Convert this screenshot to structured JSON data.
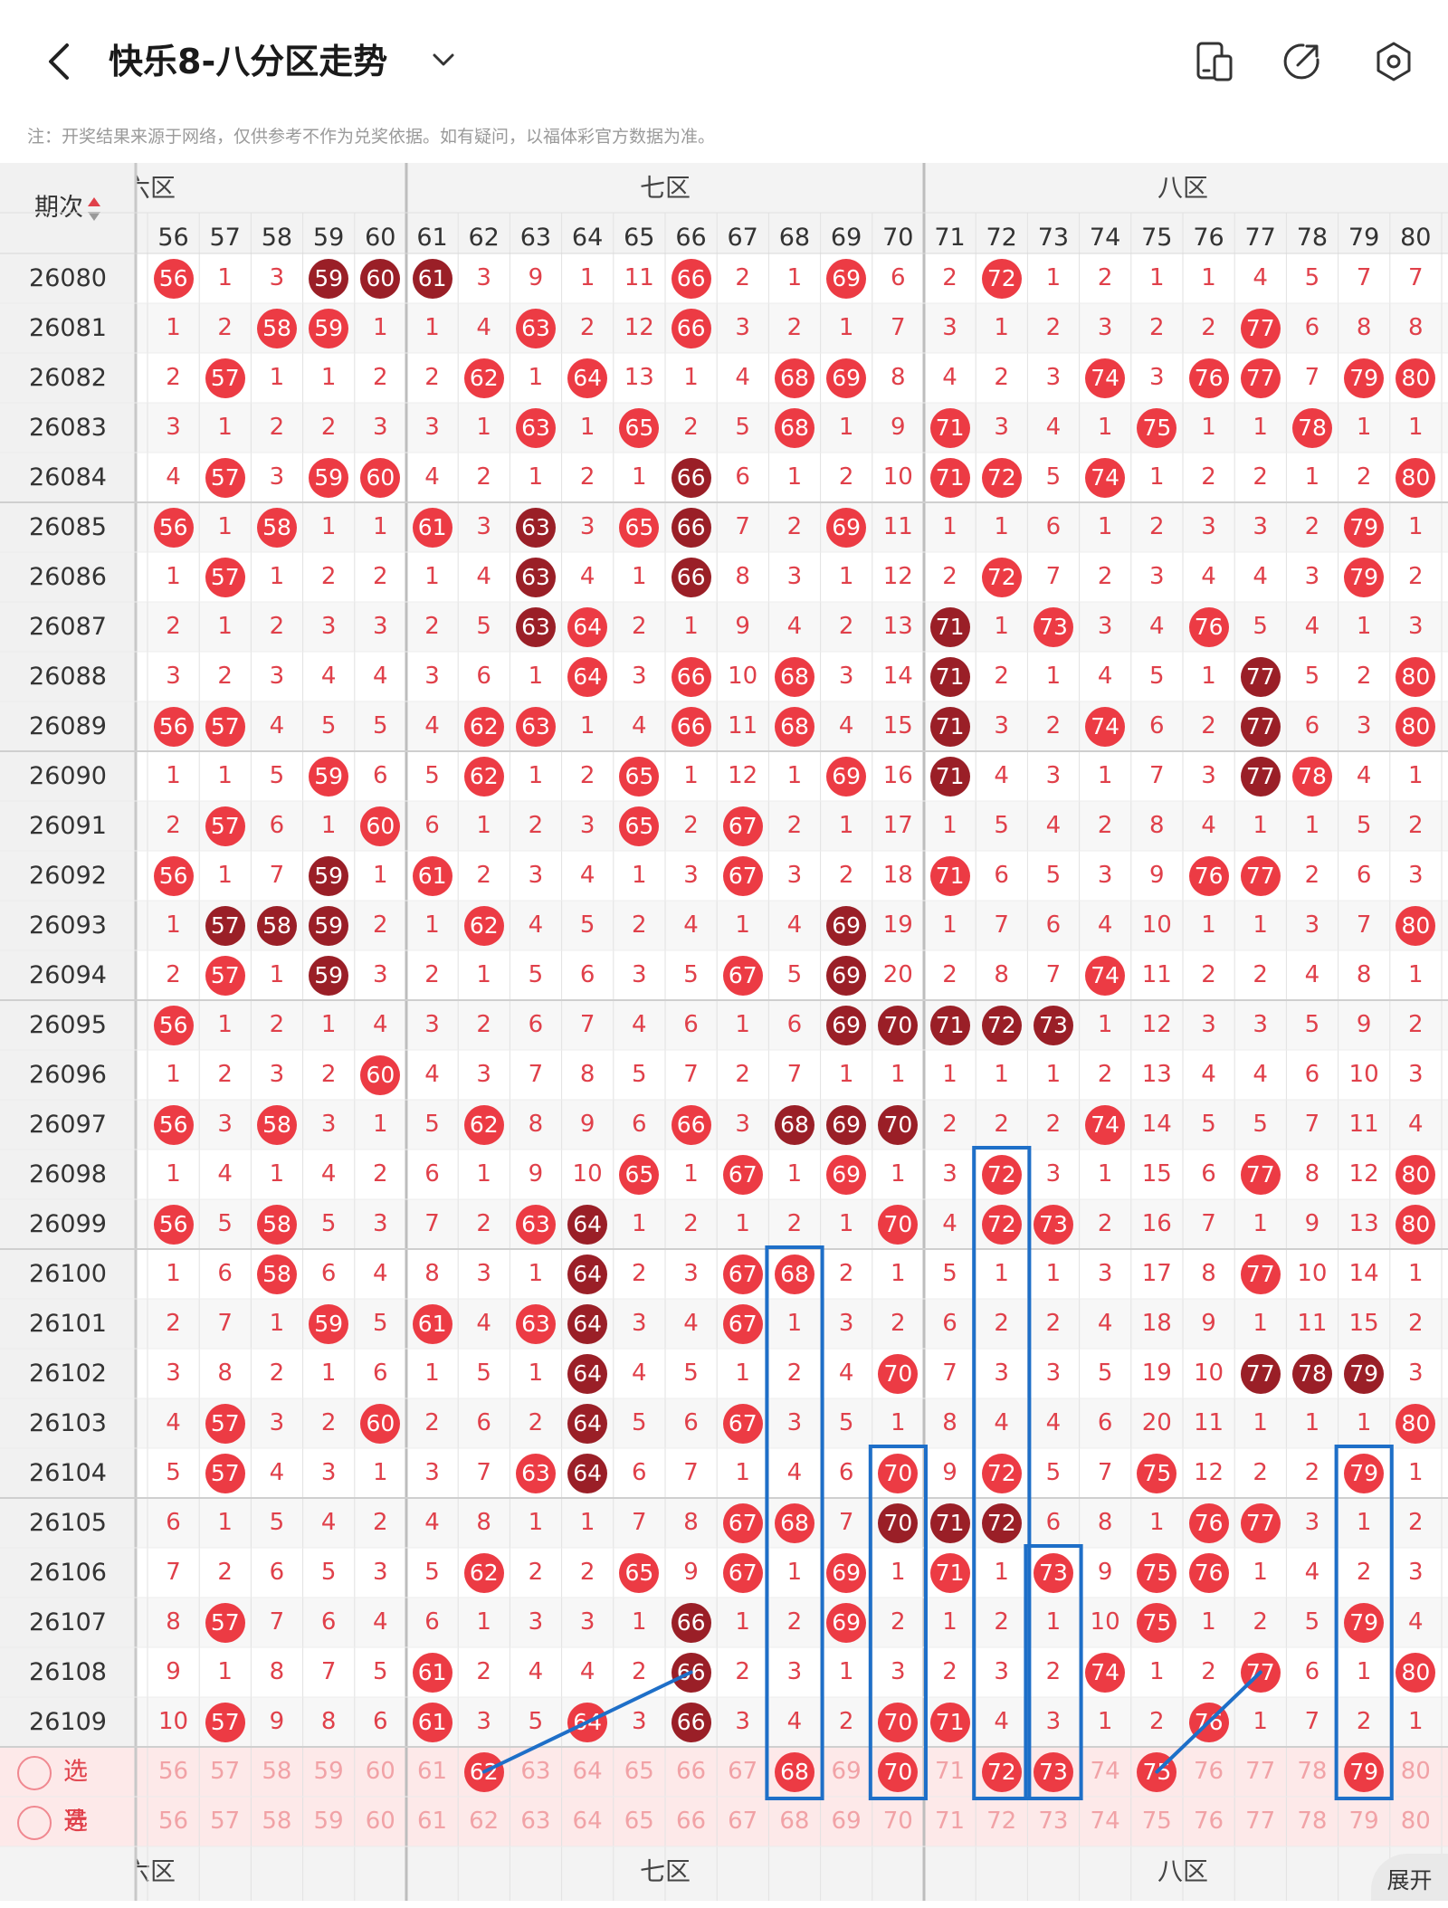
{
  "header": {
    "title": "快乐8-八分区走势",
    "icons": [
      "back-icon",
      "chevron-down-icon",
      "device-icon",
      "share-icon",
      "settings-icon"
    ]
  },
  "notice": "注：开奖结果来源于网络，仅供参考不作为兑奖依据。如有疑问，以福体彩官方数据为准。",
  "table": {
    "period_header": "期次",
    "zones": [
      {
        "label": "六区",
        "visible": "六区"
      },
      {
        "label": "七区",
        "visible": "七区"
      },
      {
        "label": "八区",
        "visible": "八区"
      }
    ],
    "zone_labels": [
      "六区",
      "七区",
      "八区"
    ],
    "numbers": [
      56,
      57,
      58,
      59,
      60,
      61,
      62,
      63,
      64,
      65,
      66,
      67,
      68,
      69,
      70,
      71,
      72,
      73,
      74,
      75,
      76,
      77,
      78,
      79,
      80
    ],
    "rows": [
      {
        "period": "26080",
        "cells": [
          "56",
          "1",
          "3",
          "59",
          "60",
          "61",
          "3",
          "9",
          "1",
          "11",
          "66",
          "2",
          "1",
          "69",
          "6",
          "2",
          "72",
          "1",
          "2",
          "1",
          "1",
          "4",
          "5",
          "7",
          "7"
        ],
        "dark": [
          59,
          60,
          61
        ]
      },
      {
        "period": "26081",
        "cells": [
          "1",
          "2",
          "58",
          "59",
          "1",
          "1",
          "4",
          "63",
          "2",
          "12",
          "66",
          "3",
          "2",
          "1",
          "7",
          "3",
          "1",
          "2",
          "3",
          "2",
          "2",
          "77",
          "6",
          "8",
          "8"
        ],
        "dark": []
      },
      {
        "period": "26082",
        "cells": [
          "2",
          "57",
          "1",
          "1",
          "2",
          "2",
          "62",
          "1",
          "64",
          "13",
          "1",
          "4",
          "68",
          "69",
          "8",
          "4",
          "2",
          "3",
          "74",
          "3",
          "76",
          "77",
          "7",
          "79",
          "80"
        ],
        "dark": []
      },
      {
        "period": "26083",
        "cells": [
          "3",
          "1",
          "2",
          "2",
          "3",
          "3",
          "1",
          "63",
          "1",
          "65",
          "2",
          "5",
          "68",
          "1",
          "9",
          "71",
          "3",
          "4",
          "1",
          "75",
          "1",
          "1",
          "78",
          "1",
          "1"
        ],
        "dark": []
      },
      {
        "period": "26084",
        "cells": [
          "4",
          "57",
          "3",
          "59",
          "60",
          "4",
          "2",
          "1",
          "2",
          "1",
          "66",
          "6",
          "1",
          "2",
          "10",
          "71",
          "72",
          "5",
          "74",
          "1",
          "2",
          "2",
          "1",
          "2",
          "80"
        ],
        "dark": [
          66
        ]
      },
      {
        "period": "26085",
        "cells": [
          "56",
          "1",
          "58",
          "1",
          "1",
          "61",
          "3",
          "63",
          "3",
          "65",
          "66",
          "7",
          "2",
          "69",
          "11",
          "1",
          "1",
          "6",
          "1",
          "2",
          "3",
          "3",
          "2",
          "79",
          "1"
        ],
        "dark": [
          63,
          66
        ]
      },
      {
        "period": "26086",
        "cells": [
          "1",
          "57",
          "1",
          "2",
          "2",
          "1",
          "4",
          "63",
          "4",
          "1",
          "66",
          "8",
          "3",
          "1",
          "12",
          "2",
          "72",
          "7",
          "2",
          "3",
          "4",
          "4",
          "3",
          "79",
          "2"
        ],
        "dark": [
          63,
          66
        ]
      },
      {
        "period": "26087",
        "cells": [
          "2",
          "1",
          "2",
          "3",
          "3",
          "2",
          "5",
          "63",
          "64",
          "2",
          "1",
          "9",
          "4",
          "2",
          "13",
          "71",
          "1",
          "73",
          "3",
          "4",
          "76",
          "5",
          "4",
          "1",
          "3"
        ],
        "dark": [
          63,
          71
        ]
      },
      {
        "period": "26088",
        "cells": [
          "3",
          "2",
          "3",
          "4",
          "4",
          "3",
          "6",
          "1",
          "64",
          "3",
          "66",
          "10",
          "68",
          "3",
          "14",
          "71",
          "2",
          "1",
          "4",
          "5",
          "1",
          "77",
          "5",
          "2",
          "80"
        ],
        "dark": [
          71,
          77
        ]
      },
      {
        "period": "26089",
        "cells": [
          "56",
          "57",
          "4",
          "5",
          "5",
          "4",
          "62",
          "63",
          "1",
          "4",
          "66",
          "11",
          "68",
          "4",
          "15",
          "71",
          "3",
          "2",
          "74",
          "6",
          "2",
          "77",
          "6",
          "3",
          "80"
        ],
        "dark": [
          71,
          77
        ]
      },
      {
        "period": "26090",
        "cells": [
          "1",
          "1",
          "5",
          "59",
          "6",
          "5",
          "62",
          "1",
          "2",
          "65",
          "1",
          "12",
          "1",
          "69",
          "16",
          "71",
          "4",
          "3",
          "1",
          "7",
          "3",
          "77",
          "78",
          "4",
          "1"
        ],
        "dark": [
          71,
          77
        ]
      },
      {
        "period": "26091",
        "cells": [
          "2",
          "57",
          "6",
          "1",
          "60",
          "6",
          "1",
          "2",
          "3",
          "65",
          "2",
          "67",
          "2",
          "1",
          "17",
          "1",
          "5",
          "4",
          "2",
          "8",
          "4",
          "1",
          "1",
          "5",
          "2"
        ],
        "dark": []
      },
      {
        "period": "26092",
        "cells": [
          "56",
          "1",
          "7",
          "59",
          "1",
          "61",
          "2",
          "3",
          "4",
          "1",
          "3",
          "67",
          "3",
          "2",
          "18",
          "71",
          "6",
          "5",
          "3",
          "9",
          "76",
          "77",
          "2",
          "6",
          "3"
        ],
        "dark": [
          59
        ]
      },
      {
        "period": "26093",
        "cells": [
          "1",
          "57",
          "58",
          "59",
          "2",
          "1",
          "62",
          "4",
          "5",
          "2",
          "4",
          "1",
          "4",
          "69",
          "19",
          "1",
          "7",
          "6",
          "4",
          "10",
          "1",
          "1",
          "3",
          "7",
          "80"
        ],
        "dark": [
          57,
          58,
          59,
          69
        ]
      },
      {
        "period": "26094",
        "cells": [
          "2",
          "57",
          "1",
          "59",
          "3",
          "2",
          "1",
          "5",
          "6",
          "3",
          "5",
          "67",
          "5",
          "69",
          "20",
          "2",
          "8",
          "7",
          "74",
          "11",
          "2",
          "2",
          "4",
          "8",
          "1"
        ],
        "dark": [
          59,
          69
        ]
      },
      {
        "period": "26095",
        "cells": [
          "56",
          "1",
          "2",
          "1",
          "4",
          "3",
          "2",
          "6",
          "7",
          "4",
          "6",
          "1",
          "6",
          "69",
          "70",
          "71",
          "72",
          "73",
          "1",
          "12",
          "3",
          "3",
          "5",
          "9",
          "2"
        ],
        "dark": [
          69,
          70,
          71,
          72,
          73
        ]
      },
      {
        "period": "26096",
        "cells": [
          "1",
          "2",
          "3",
          "2",
          "60",
          "4",
          "3",
          "7",
          "8",
          "5",
          "7",
          "2",
          "7",
          "1",
          "1",
          "1",
          "1",
          "1",
          "2",
          "13",
          "4",
          "4",
          "6",
          "10",
          "3"
        ],
        "dark": []
      },
      {
        "period": "26097",
        "cells": [
          "56",
          "3",
          "58",
          "3",
          "1",
          "5",
          "62",
          "8",
          "9",
          "6",
          "66",
          "3",
          "68",
          "69",
          "70",
          "2",
          "2",
          "2",
          "74",
          "14",
          "5",
          "5",
          "7",
          "11",
          "4"
        ],
        "dark": [
          68,
          69,
          70
        ]
      },
      {
        "period": "26098",
        "cells": [
          "1",
          "4",
          "1",
          "4",
          "2",
          "6",
          "1",
          "9",
          "10",
          "65",
          "1",
          "67",
          "1",
          "69",
          "1",
          "3",
          "72",
          "3",
          "1",
          "15",
          "6",
          "77",
          "8",
          "12",
          "80"
        ],
        "dark": []
      },
      {
        "period": "26099",
        "cells": [
          "56",
          "5",
          "58",
          "5",
          "3",
          "7",
          "2",
          "63",
          "64",
          "1",
          "2",
          "1",
          "2",
          "1",
          "70",
          "4",
          "72",
          "73",
          "2",
          "16",
          "7",
          "1",
          "9",
          "13",
          "80"
        ],
        "dark": [
          64
        ]
      },
      {
        "period": "26100",
        "cells": [
          "1",
          "6",
          "58",
          "6",
          "4",
          "8",
          "3",
          "1",
          "64",
          "2",
          "3",
          "67",
          "68",
          "2",
          "1",
          "5",
          "1",
          "1",
          "3",
          "17",
          "8",
          "77",
          "10",
          "14",
          "1"
        ],
        "dark": [
          64
        ]
      },
      {
        "period": "26101",
        "cells": [
          "2",
          "7",
          "1",
          "59",
          "5",
          "61",
          "4",
          "63",
          "64",
          "3",
          "4",
          "67",
          "1",
          "3",
          "2",
          "6",
          "2",
          "2",
          "4",
          "18",
          "9",
          "1",
          "11",
          "15",
          "2"
        ],
        "dark": [
          64
        ]
      },
      {
        "period": "26102",
        "cells": [
          "3",
          "8",
          "2",
          "1",
          "6",
          "1",
          "5",
          "1",
          "64",
          "4",
          "5",
          "1",
          "2",
          "4",
          "70",
          "7",
          "3",
          "3",
          "5",
          "19",
          "10",
          "77",
          "78",
          "79",
          "3"
        ],
        "dark": [
          64,
          77,
          78,
          79
        ]
      },
      {
        "period": "26103",
        "cells": [
          "4",
          "57",
          "3",
          "2",
          "60",
          "2",
          "6",
          "2",
          "64",
          "5",
          "6",
          "67",
          "3",
          "5",
          "1",
          "8",
          "4",
          "4",
          "6",
          "20",
          "11",
          "1",
          "1",
          "1",
          "80"
        ],
        "dark": [
          64
        ]
      },
      {
        "period": "26104",
        "cells": [
          "5",
          "57",
          "4",
          "3",
          "1",
          "3",
          "7",
          "63",
          "64",
          "6",
          "7",
          "1",
          "4",
          "6",
          "70",
          "9",
          "72",
          "5",
          "7",
          "75",
          "12",
          "2",
          "2",
          "79",
          "1"
        ],
        "dark": [
          64
        ]
      },
      {
        "period": "26105",
        "cells": [
          "6",
          "1",
          "5",
          "4",
          "2",
          "4",
          "8",
          "1",
          "1",
          "7",
          "8",
          "67",
          "68",
          "7",
          "70",
          "71",
          "72",
          "6",
          "8",
          "1",
          "76",
          "77",
          "3",
          "1",
          "2"
        ],
        "dark": [
          70,
          71,
          72
        ]
      },
      {
        "period": "26106",
        "cells": [
          "7",
          "2",
          "6",
          "5",
          "3",
          "5",
          "62",
          "2",
          "2",
          "65",
          "9",
          "67",
          "1",
          "69",
          "1",
          "71",
          "1",
          "73",
          "9",
          "75",
          "76",
          "1",
          "4",
          "2",
          "3"
        ],
        "dark": []
      },
      {
        "period": "26107",
        "cells": [
          "8",
          "57",
          "7",
          "6",
          "4",
          "6",
          "1",
          "3",
          "3",
          "1",
          "66",
          "1",
          "2",
          "69",
          "2",
          "1",
          "2",
          "1",
          "10",
          "75",
          "1",
          "2",
          "5",
          "79",
          "4"
        ],
        "dark": [
          66
        ]
      },
      {
        "period": "26108",
        "cells": [
          "9",
          "1",
          "8",
          "7",
          "5",
          "61",
          "2",
          "4",
          "4",
          "2",
          "66",
          "2",
          "3",
          "1",
          "3",
          "2",
          "3",
          "2",
          "74",
          "1",
          "2",
          "77",
          "6",
          "1",
          "80"
        ],
        "dark": [
          66
        ]
      },
      {
        "period": "26109",
        "cells": [
          "10",
          "57",
          "9",
          "8",
          "6",
          "61",
          "3",
          "5",
          "64",
          "3",
          "66",
          "3",
          "4",
          "2",
          "70",
          "71",
          "4",
          "3",
          "1",
          "2",
          "76",
          "1",
          "7",
          "2",
          "1"
        ],
        "dark": [
          66
        ]
      }
    ],
    "pick_rows": [
      {
        "label": "选号",
        "selected": [
          62,
          68,
          70,
          72,
          73,
          75,
          79
        ]
      },
      {
        "label": "选号",
        "selected": []
      }
    ]
  },
  "expand_button": "展开",
  "colors": {
    "accent": "#ec3b44",
    "dark_ball": "#9a1f27",
    "text_red": "#e0404a",
    "blue_box": "#1e6fc8"
  }
}
